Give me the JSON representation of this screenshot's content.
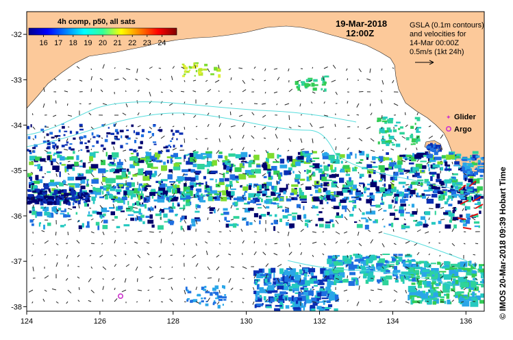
{
  "map": {
    "date_label": "19-Mar-2018",
    "time_label": "12:00Z",
    "gsla_note": [
      "GSLA (0.1m contours)",
      "and velocities for",
      "14-Mar 00:00Z",
      "0.5m/s (1kt 24h)"
    ],
    "credit": "© IMOS 20-Mar-2018 09:39 Hobart Time",
    "legend": {
      "glider_label": "Glider",
      "argo_label": "Argo",
      "glider_color": "#cc33cc",
      "argo_color": "#cc33cc"
    },
    "land_color": "#fcc99a",
    "contour_color": "#55dddd"
  },
  "colorbar": {
    "title": "4h comp, p50, all sats",
    "range": [
      15,
      25
    ],
    "ticks": [
      "16",
      "17",
      "18",
      "19",
      "20",
      "21",
      "22",
      "23",
      "24"
    ]
  },
  "axes": {
    "x_range": [
      124,
      136.5
    ],
    "y_range": [
      -38.1,
      -31.5
    ],
    "x_ticks": [
      "124",
      "126",
      "128",
      "130",
      "132",
      "134",
      "136"
    ],
    "y_ticks": [
      "-32",
      "-33",
      "-34",
      "-35",
      "-36",
      "-37",
      "-38"
    ]
  },
  "markers": {
    "argo": [
      {
        "lon": 126.6,
        "lat": -37.65
      }
    ]
  }
}
